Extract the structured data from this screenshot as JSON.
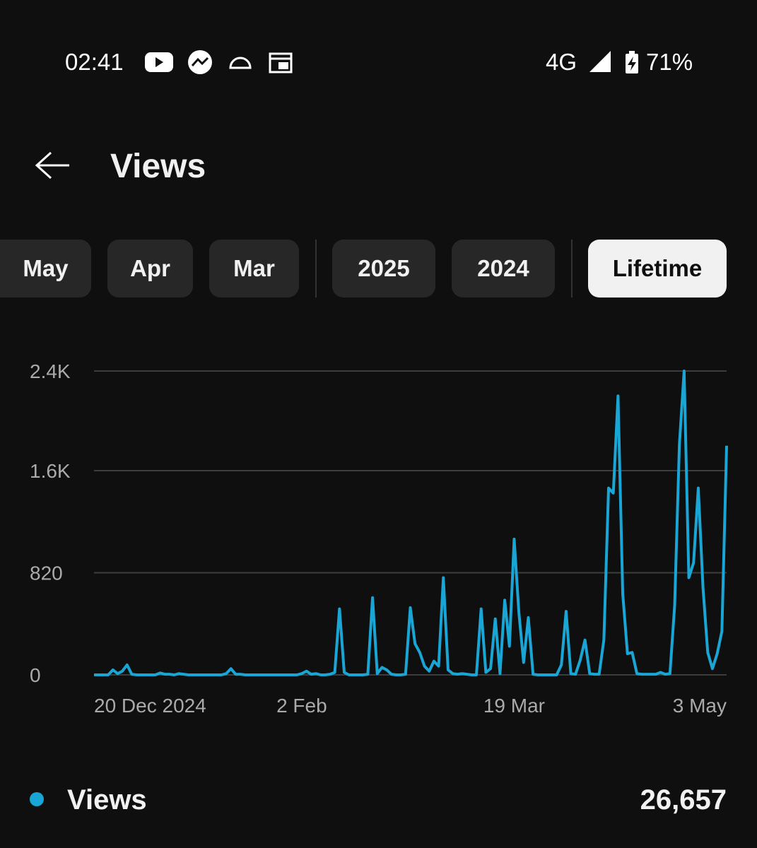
{
  "status_bar": {
    "time": "02:41",
    "network": "4G",
    "battery": "71%"
  },
  "header": {
    "title": "Views"
  },
  "tabs": [
    "May",
    "Apr",
    "Mar",
    "2025",
    "2024",
    "Lifetime"
  ],
  "selected_tab": "Lifetime",
  "chart_data": {
    "type": "line",
    "categories": [
      "20 Dec 2024",
      null,
      null,
      null,
      null,
      null,
      null,
      null,
      null,
      null,
      null,
      null,
      null,
      null,
      null,
      null,
      null,
      null,
      null,
      null,
      null,
      null,
      null,
      null,
      null,
      null,
      null,
      null,
      null,
      null,
      null,
      null,
      null,
      null,
      null,
      null,
      null,
      null,
      null,
      null,
      null,
      null,
      null,
      null,
      "2 Feb",
      null,
      null,
      null,
      null,
      null,
      null,
      null,
      null,
      null,
      null,
      null,
      null,
      null,
      null,
      null,
      null,
      null,
      null,
      null,
      null,
      null,
      null,
      null,
      null,
      null,
      null,
      null,
      null,
      null,
      null,
      null,
      null,
      null,
      null,
      null,
      null,
      null,
      null,
      null,
      null,
      null,
      null,
      null,
      null,
      "19 Mar",
      null,
      null,
      null,
      null,
      null,
      null,
      null,
      null,
      null,
      null,
      null,
      null,
      null,
      null,
      null,
      null,
      null,
      null,
      null,
      null,
      null,
      null,
      null,
      null,
      null,
      null,
      null,
      null,
      null,
      null,
      null,
      null,
      null,
      null,
      null,
      null,
      null,
      null,
      null,
      null,
      null,
      null,
      null,
      null,
      "3 May"
    ],
    "series": [
      {
        "name": "Views",
        "color": "#19a6d4",
        "values": [
          0,
          0,
          0,
          0,
          40,
          10,
          30,
          80,
          5,
          0,
          0,
          0,
          0,
          0,
          15,
          5,
          5,
          0,
          10,
          5,
          0,
          0,
          0,
          0,
          0,
          0,
          0,
          0,
          10,
          50,
          5,
          5,
          0,
          0,
          0,
          0,
          0,
          0,
          0,
          0,
          0,
          0,
          0,
          0,
          10,
          30,
          5,
          10,
          0,
          0,
          5,
          20,
          530,
          20,
          0,
          0,
          0,
          0,
          5,
          620,
          10,
          60,
          40,
          5,
          0,
          0,
          5,
          540,
          250,
          180,
          70,
          30,
          110,
          70,
          780,
          40,
          10,
          5,
          10,
          5,
          0,
          0,
          530,
          20,
          50,
          450,
          10,
          600,
          230,
          1090,
          500,
          100,
          460,
          5,
          0,
          0,
          0,
          0,
          0,
          80,
          510,
          10,
          5,
          120,
          280,
          10,
          5,
          5,
          280,
          1500,
          1460,
          2240,
          650,
          170,
          180,
          10,
          5,
          5,
          5,
          5,
          20,
          5,
          10,
          560,
          1850,
          2440,
          780,
          900,
          1500,
          700,
          180,
          50,
          170,
          350,
          1840
        ]
      }
    ],
    "ylim": [
      0,
      2440
    ],
    "yticks": [
      0,
      820,
      {
        "value": 1640,
        "label": "1.6K"
      },
      {
        "value": 2440,
        "label": "2.4K"
      }
    ],
    "grid": true
  },
  "total": "26,657"
}
